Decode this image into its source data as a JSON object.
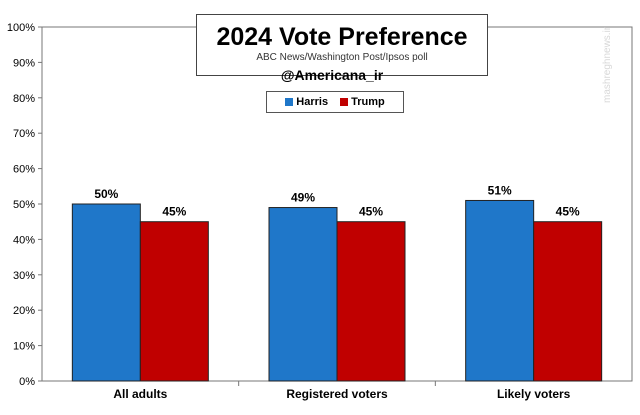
{
  "chart_data": {
    "type": "bar",
    "title": "2024 Vote Preference",
    "subtitle": "ABC News/Washington  Post/Ipsos  poll",
    "handle": "@Americana_ir",
    "categories": [
      "All adults",
      "Registered voters",
      "Likely voters"
    ],
    "series": [
      {
        "name": "Harris",
        "color": "#1f77c9",
        "values": [
          50,
          49,
          51
        ],
        "labels": [
          "50%",
          "49%",
          "51%"
        ]
      },
      {
        "name": "Trump",
        "color": "#c00000",
        "values": [
          45,
          45,
          45
        ],
        "labels": [
          "45%",
          "45%",
          "45%"
        ]
      }
    ],
    "ylim": [
      0,
      100
    ],
    "yticks": [
      "0%",
      "10%",
      "20%",
      "30%",
      "40%",
      "50%",
      "60%",
      "70%",
      "80%",
      "90%",
      "100%"
    ],
    "xlabel": "",
    "ylabel": "",
    "legend": "top-center",
    "grid": false
  },
  "watermark": "mashreghnews.ir"
}
